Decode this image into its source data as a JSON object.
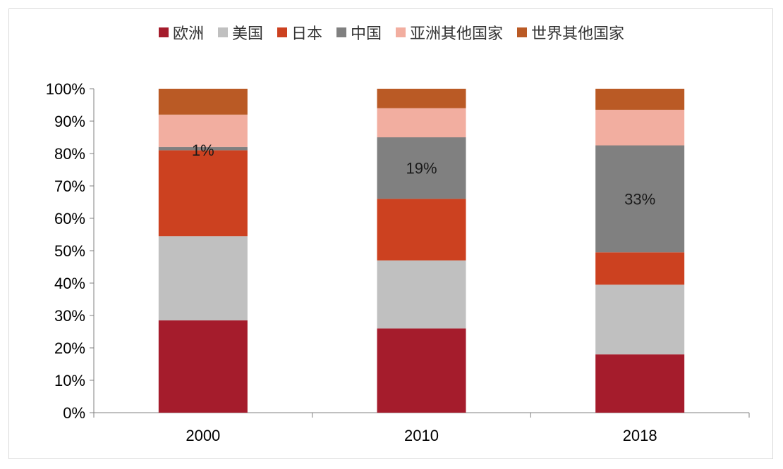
{
  "chart_data": {
    "type": "bar",
    "stacked": true,
    "categories": [
      "2000",
      "2010",
      "2018"
    ],
    "series": [
      {
        "name": "欧洲",
        "color": "#a51c2c",
        "values": [
          28.5,
          26,
          18
        ]
      },
      {
        "name": "美国",
        "color": "#c0c0c0",
        "values": [
          26,
          21,
          21.5
        ]
      },
      {
        "name": "日本",
        "color": "#cc4120",
        "values": [
          26.5,
          19,
          10
        ]
      },
      {
        "name": "中国",
        "color": "#808080",
        "values": [
          1,
          19,
          33
        ]
      },
      {
        "name": "亚洲其他国家",
        "color": "#f2aea0",
        "values": [
          10,
          9,
          11
        ]
      },
      {
        "name": "世界其他国家",
        "color": "#ba5a25",
        "values": [
          8,
          6,
          6.5
        ]
      }
    ],
    "data_labels": [
      {
        "category": "2000",
        "series": "中国",
        "text": "1%"
      },
      {
        "category": "2010",
        "series": "中国",
        "text": "19%"
      },
      {
        "category": "2018",
        "series": "中国",
        "text": "33%"
      }
    ],
    "ylim": [
      0,
      100
    ],
    "yticks": [
      "0%",
      "10%",
      "20%",
      "30%",
      "40%",
      "50%",
      "60%",
      "70%",
      "80%",
      "90%",
      "100%"
    ],
    "legend_position": "top",
    "grid": false
  }
}
